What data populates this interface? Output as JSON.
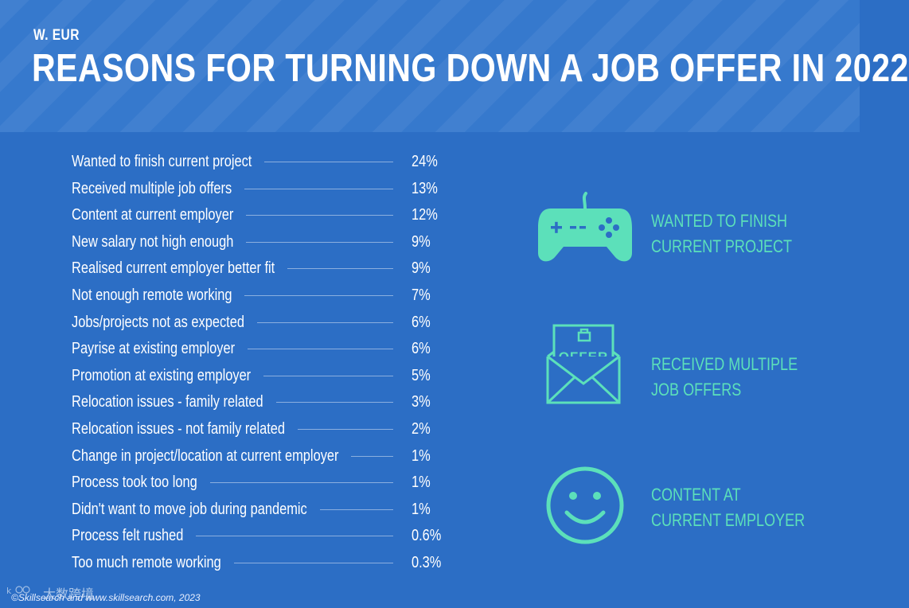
{
  "header": {
    "region": "W. EUR",
    "title": "REASONS FOR TURNING DOWN A JOB OFFER IN 2022"
  },
  "colors": {
    "background": "#2c6ec5",
    "header": "#3679cd",
    "accent": "#5ce0ba",
    "text": "#ffffff"
  },
  "chart_data": {
    "type": "table",
    "title": "REASONS FOR TURNING DOWN A JOB OFFER IN 2022",
    "subtitle": "W. EUR",
    "unit": "%",
    "rows": [
      {
        "label": "Wanted to finish current project",
        "value": 24,
        "display": "24%"
      },
      {
        "label": "Received multiple job offers",
        "value": 13,
        "display": "13%"
      },
      {
        "label": "Content at current employer",
        "value": 12,
        "display": "12%"
      },
      {
        "label": "New salary not high enough",
        "value": 9,
        "display": "9%"
      },
      {
        "label": "Realised current employer better fit",
        "value": 9,
        "display": "9%"
      },
      {
        "label": "Not enough remote working",
        "value": 7,
        "display": "7%"
      },
      {
        "label": "Jobs/projects not as expected",
        "value": 6,
        "display": "6%"
      },
      {
        "label": "Payrise at existing employer",
        "value": 6,
        "display": "6%"
      },
      {
        "label": "Promotion at existing employer",
        "value": 5,
        "display": "5%"
      },
      {
        "label": "Relocation issues - family related",
        "value": 3,
        "display": "3%"
      },
      {
        "label": "Relocation issues - not family related",
        "value": 2,
        "display": "2%"
      },
      {
        "label": "Change in project/location at current employer",
        "value": 1,
        "display": "1%"
      },
      {
        "label": "Process took too long",
        "value": 1,
        "display": "1%"
      },
      {
        "label": "Didn't want to move job during pandemic",
        "value": 1,
        "display": "1%"
      },
      {
        "label": "Process felt rushed",
        "value": 0.6,
        "display": "0.6%"
      },
      {
        "label": "Too much remote working",
        "value": 0.3,
        "display": "0.3%"
      }
    ]
  },
  "highlights": [
    {
      "icon": "gamepad-icon",
      "lines": [
        "WANTED TO FINISH",
        "CURRENT PROJECT"
      ]
    },
    {
      "icon": "offer-envelope-icon",
      "icon_text": "OFFER",
      "lines": [
        "RECEIVED MULTIPLE",
        "JOB OFFERS"
      ]
    },
    {
      "icon": "smiley-face-icon",
      "lines": [
        "CONTENT AT",
        "CURRENT EMPLOYER"
      ]
    }
  ],
  "footer": {
    "credit": "©Skillsearch and www.skillsearch.com, 2023",
    "watermark": "大数跨境"
  }
}
